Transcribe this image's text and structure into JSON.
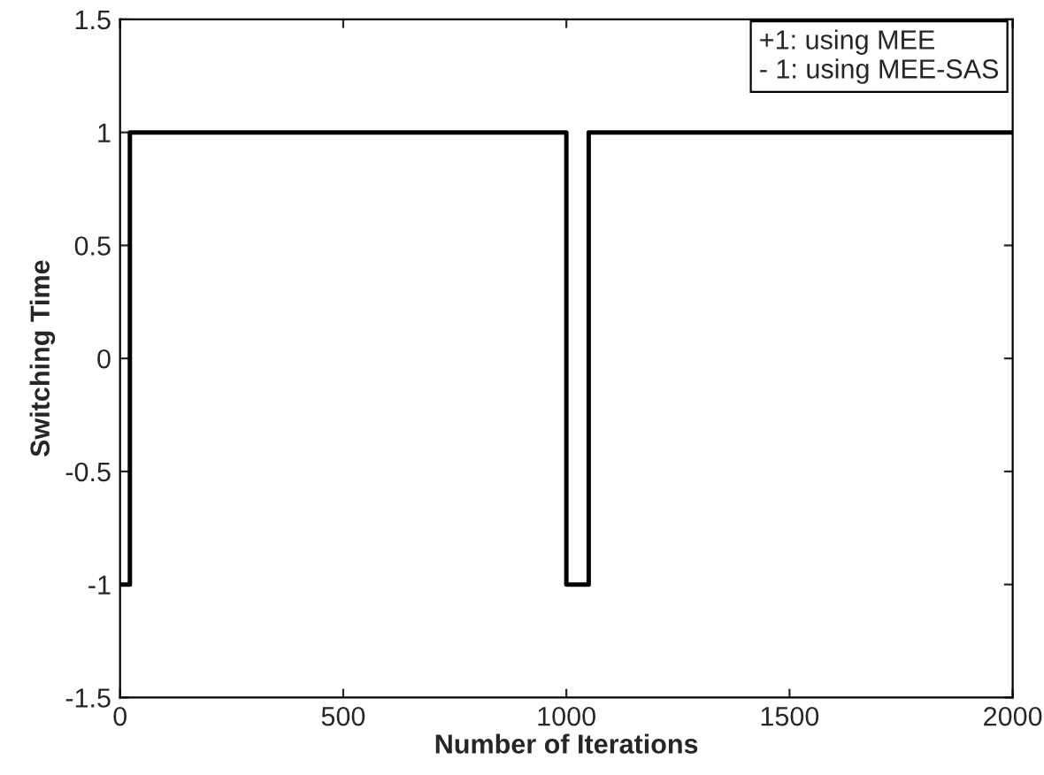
{
  "chart_data": {
    "type": "step",
    "xlabel": "Number of Iterations",
    "ylabel": "Switching Time",
    "x": [
      0,
      22,
      1000,
      1050,
      2000
    ],
    "series": [
      {
        "color": "#000000",
        "values": [
          -1,
          1,
          -1,
          1,
          1
        ]
      }
    ],
    "xlim": [
      0,
      2000
    ],
    "xticks": [
      0,
      500,
      1000,
      1500,
      2000
    ],
    "ylim": [
      -1.5,
      1.5
    ],
    "yticks": [
      -1.5,
      -1,
      -0.5,
      0,
      0.5,
      1,
      1.5
    ],
    "annotations": [
      "+1: using MEE\n- 1: using MEE-SAS"
    ],
    "grid": false,
    "legend": false
  }
}
